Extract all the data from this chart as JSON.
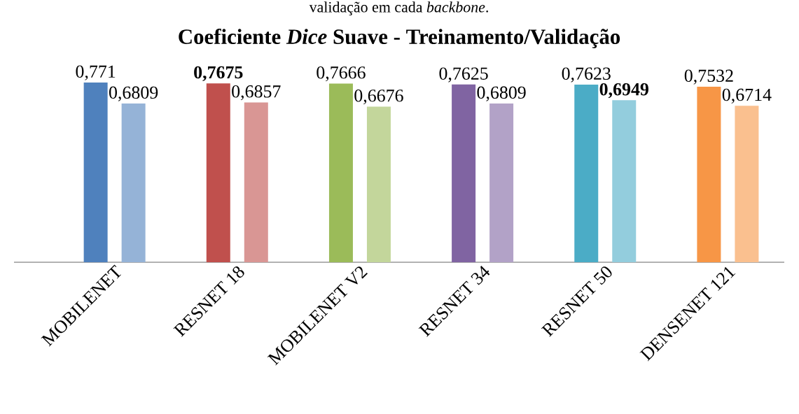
{
  "chart_data": {
    "type": "bar",
    "title": "Coeficiente *Dice* Suave - Treinamento/Validação",
    "annotations": [
      "validação em cada *backbone*."
    ],
    "categories": [
      "MOBILENET",
      "RESNET 18",
      "MOBILENET V2",
      "RESNET 34",
      "RESNET 50",
      "DENSENET 121"
    ],
    "series": [
      {
        "values": [
          0.771,
          0.7675,
          0.7666,
          0.7625,
          0.7623,
          0.7532
        ],
        "colors": [
          "#4f81bd",
          "#c0504d",
          "#9bbb59",
          "#8064a2",
          "#4bacc6",
          "#f79646"
        ],
        "value_labels": [
          "0,771",
          "**0,7675**",
          "0,7666",
          "0,7625",
          "0,7623",
          "0,7532"
        ]
      },
      {
        "values": [
          0.6809,
          0.6857,
          0.6676,
          0.6809,
          0.6949,
          0.6714
        ],
        "colors": [
          "#95b3d7",
          "#d99694",
          "#c3d69b",
          "#b2a2c7",
          "#93cddd",
          "#fac08f"
        ],
        "value_labels": [
          "0,6809",
          "0,6857",
          "0,6676",
          "0,6809",
          "**0,6949**",
          "0,6714"
        ]
      }
    ]
  }
}
